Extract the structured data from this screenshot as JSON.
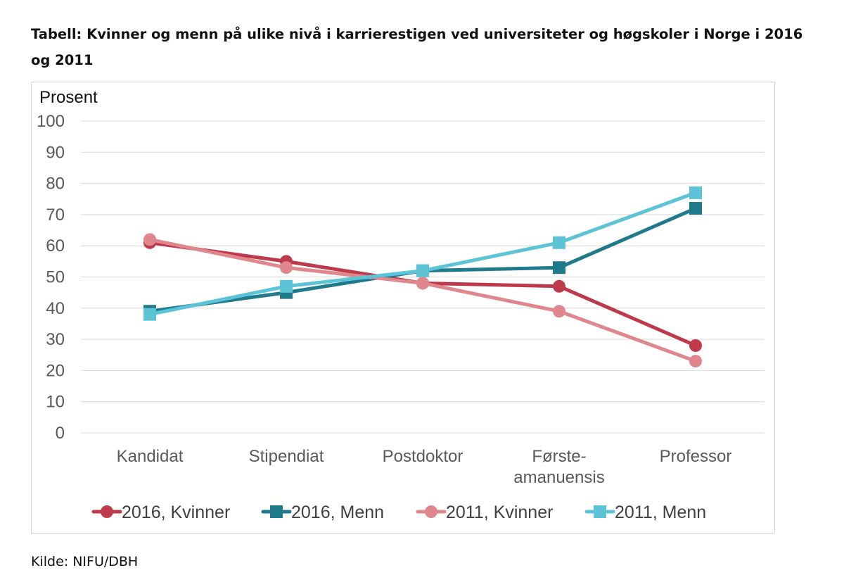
{
  "title": "Tabell: Kvinner og menn på ulike nivå i karrierestigen ved universiteter og høgskoler i Norge i 2016 og 2011",
  "source": "Kilde: NIFU/DBH",
  "chart_data": {
    "type": "line",
    "title": "",
    "ylabel": "Prosent",
    "xlabel": "",
    "ylim": [
      0,
      100
    ],
    "yticks": [
      0,
      10,
      20,
      30,
      40,
      50,
      60,
      70,
      80,
      90,
      100
    ],
    "grid": true,
    "legend_position": "bottom",
    "categories": [
      [
        "Kandidat"
      ],
      [
        "Stipendiat"
      ],
      [
        "Postdoktor"
      ],
      [
        "Første-",
        "amanuensis"
      ],
      [
        "Professor"
      ]
    ],
    "series": [
      {
        "name": "2016, Kvinner",
        "values": [
          61,
          55,
          48,
          47,
          28
        ],
        "color": "#be3a4a",
        "marker": "circle"
      },
      {
        "name": "2016, Menn",
        "values": [
          39,
          45,
          52,
          53,
          72
        ],
        "color": "#1f7a8c",
        "marker": "square"
      },
      {
        "name": "2011, Kvinner",
        "values": [
          62,
          53,
          48,
          39,
          23
        ],
        "color": "#e0878e",
        "marker": "circle"
      },
      {
        "name": "2011, Menn",
        "values": [
          38,
          47,
          52,
          61,
          77
        ],
        "color": "#5cc4d6",
        "marker": "square"
      }
    ]
  }
}
